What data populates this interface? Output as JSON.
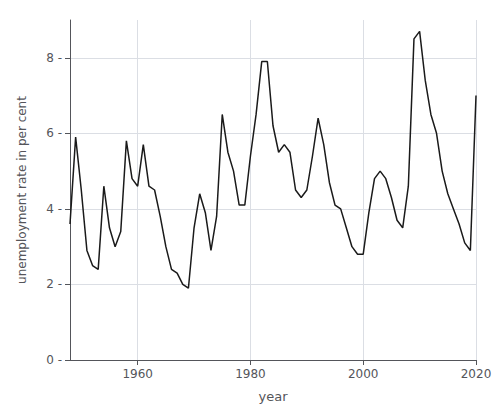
{
  "chart_data": {
    "type": "line",
    "x": [
      1948,
      1949,
      1950,
      1951,
      1952,
      1953,
      1954,
      1955,
      1956,
      1957,
      1958,
      1959,
      1960,
      1961,
      1962,
      1963,
      1964,
      1965,
      1966,
      1967,
      1968,
      1969,
      1970,
      1971,
      1972,
      1973,
      1974,
      1975,
      1976,
      1977,
      1978,
      1979,
      1980,
      1981,
      1982,
      1983,
      1984,
      1985,
      1986,
      1987,
      1988,
      1989,
      1990,
      1991,
      1992,
      1993,
      1994,
      1995,
      1996,
      1997,
      1998,
      1999,
      2000,
      2001,
      2002,
      2003,
      2004,
      2005,
      2006,
      2007,
      2008,
      2009,
      2010,
      2011,
      2012,
      2013,
      2014,
      2015,
      2016,
      2017,
      2018,
      2019,
      2020
    ],
    "values": [
      3.6,
      5.9,
      4.5,
      2.9,
      2.5,
      2.4,
      4.6,
      3.5,
      3.0,
      3.4,
      5.8,
      4.8,
      4.6,
      5.7,
      4.6,
      4.5,
      3.8,
      3.0,
      2.4,
      2.3,
      2.0,
      1.9,
      3.5,
      4.4,
      3.9,
      2.9,
      3.8,
      6.5,
      5.5,
      5.0,
      4.1,
      4.1,
      5.4,
      6.5,
      7.9,
      7.9,
      6.2,
      5.5,
      5.7,
      5.5,
      4.5,
      4.3,
      4.5,
      5.4,
      6.4,
      5.7,
      4.7,
      4.1,
      4.0,
      3.5,
      3.0,
      2.8,
      2.8,
      3.9,
      4.8,
      5.0,
      4.8,
      4.3,
      3.7,
      3.5,
      4.6,
      8.5,
      8.7,
      7.4,
      6.5,
      6.0,
      5.0,
      4.4,
      4.0,
      3.6,
      3.1,
      2.9,
      7.0
    ],
    "xlabel": "year",
    "ylabel": "unemployment rate in per cent",
    "xlim": [
      1948,
      2020
    ],
    "ylim": [
      0,
      9
    ],
    "xticks": [
      1960,
      1980,
      2000,
      2020
    ],
    "yticks": [
      {
        "value": 0,
        "label": "0 -"
      },
      {
        "value": 2,
        "label": "2 -"
      },
      {
        "value": 4,
        "label": "4 -"
      },
      {
        "value": 6,
        "label": "6 -"
      },
      {
        "value": 8,
        "label": "8 -"
      }
    ],
    "color": "#1a1a1a",
    "grid": true
  }
}
